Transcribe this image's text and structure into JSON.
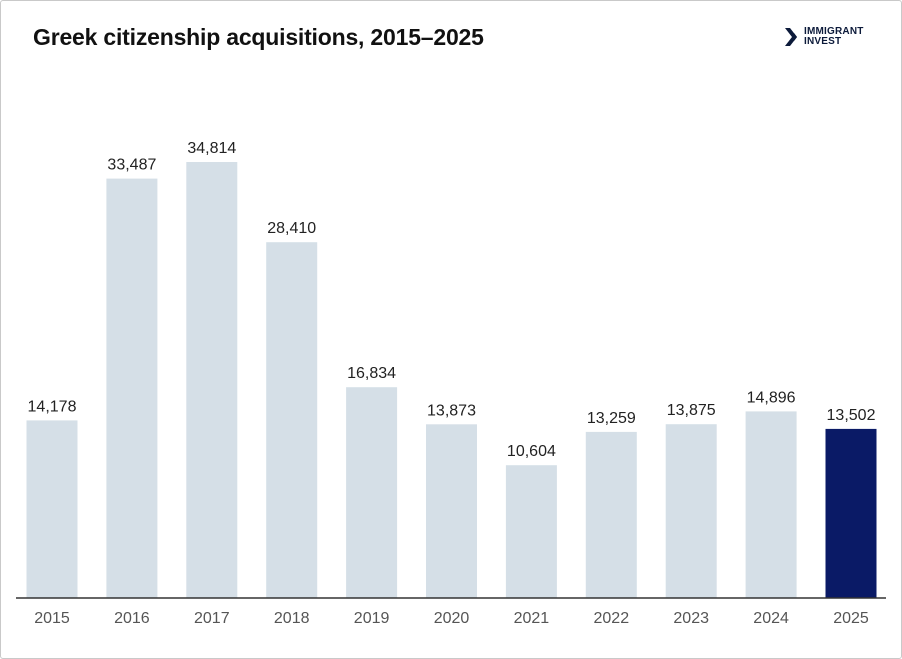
{
  "header": {
    "title": "Greek citizenship acquisitions, 2015–2025",
    "logo_line1": "IMMIGRANT",
    "logo_line2": "INVEST"
  },
  "colors": {
    "bar_default": "#d5dfe7",
    "bar_highlight": "#0a1a66",
    "axis": "#333333",
    "logo": "#0c1a3a"
  },
  "chart_data": {
    "type": "bar",
    "title": "Greek citizenship acquisitions, 2015–2025",
    "xlabel": "",
    "ylabel": "",
    "categories": [
      "2015",
      "2016",
      "2017",
      "2018",
      "2019",
      "2020",
      "2021",
      "2022",
      "2023",
      "2024",
      "2025"
    ],
    "values": [
      14178,
      33487,
      34814,
      28410,
      16834,
      13873,
      10604,
      13259,
      13875,
      14896,
      13502
    ],
    "value_labels": [
      "14,178",
      "33,487",
      "34,814",
      "28,410",
      "16,834",
      "13,873",
      "10,604",
      "13,259",
      "13,875",
      "14,896",
      "13,502"
    ],
    "highlight_category": "2025",
    "ylim": [
      0,
      40000
    ],
    "grid": false,
    "legend": "none"
  }
}
